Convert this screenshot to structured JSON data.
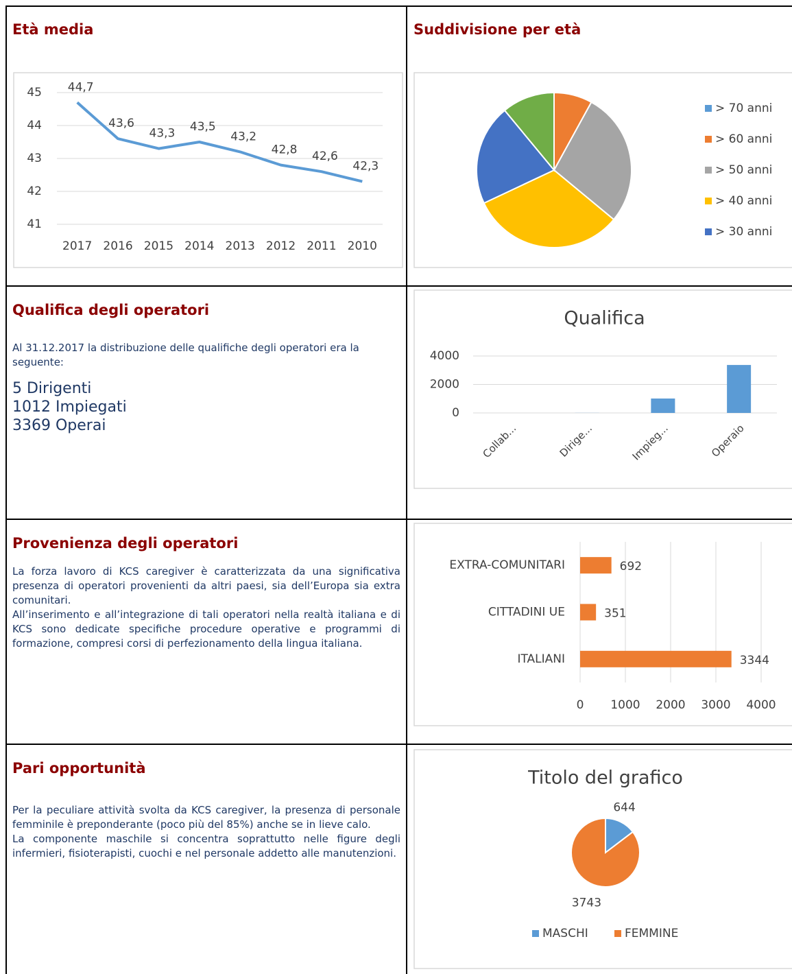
{
  "sections": [
    {
      "title": "Età media"
    },
    {
      "title": "Suddivisione per età"
    },
    {
      "title": "Qualifica degli operatori",
      "paragraphs": [
        "Al 31.12.2017 la distribuzione delle qualifiche degli operatori era la seguente:"
      ],
      "items": [
        "5 Dirigenti",
        "1012 Impiegati",
        "3369 Operai"
      ]
    },
    {
      "title": "Provenienza degli operatori",
      "paragraphs": [
        "La forza lavoro di KCS caregiver è caratterizzata da una significativa presenza di operatori provenienti da altri paesi, sia dell’Europa sia extra comunitari.",
        "All’inserimento e all’integrazione di tali operatori nella realtà italiana e di KCS sono dedicate specifiche procedure operative e programmi di formazione, compresi corsi di perfezionamento della lingua italiana."
      ]
    },
    {
      "title": "Pari opportunità",
      "paragraphs": [
        "Per la peculiare attività svolta da KCS caregiver, la presenza di personale femminile è preponderante (poco più del 85%) anche se in lieve calo.",
        "La componente maschile si concentra soprattutto nelle figure degli infermieri, fisioterapisti, cuochi e nel personale addetto alle manutenzioni."
      ]
    }
  ],
  "chart_data": [
    {
      "type": "line",
      "categories": [
        "2017",
        "2016",
        "2015",
        "2014",
        "2013",
        "2012",
        "2011",
        "2010"
      ],
      "values": [
        44.7,
        43.6,
        43.3,
        43.5,
        43.2,
        42.8,
        42.6,
        42.3
      ],
      "value_labels": [
        "44,7",
        "43,6",
        "43,3",
        "43,5",
        "43,2",
        "42,8",
        "42,6",
        "42,3"
      ],
      "color": "#5b9bd5",
      "ylim": [
        41,
        45
      ],
      "yticks": [
        41,
        42,
        43,
        44,
        45
      ],
      "grid": true
    },
    {
      "type": "pie",
      "categories": [
        "> 70 anni",
        "> 60 anni",
        "> 50 anni",
        "> 40 anni",
        "> 30 anni",
        null
      ],
      "values": [
        0,
        8,
        28,
        32,
        21,
        11
      ],
      "colors": [
        "#5b9bd5",
        "#ed7d31",
        "#a5a5a5",
        "#ffc000",
        "#4472c4",
        "#70ad47"
      ],
      "legend": "right"
    },
    {
      "type": "bar",
      "title": "Qualifica",
      "categories": [
        "Collab...",
        "Dirige...",
        "Impieg...",
        "Operaio"
      ],
      "values": [
        0,
        5,
        1012,
        3369
      ],
      "color": "#5b9bd5",
      "ylim": [
        0,
        4000
      ],
      "yticks": [
        0,
        2000,
        4000
      ],
      "grid": true
    },
    {
      "type": "hbar",
      "categories": [
        "EXTRA-COMUNITARI",
        "CITTADINI UE",
        "ITALIANI"
      ],
      "values": [
        692,
        351,
        3344
      ],
      "color": "#ed7d31",
      "xlim": [
        0,
        4000
      ],
      "xticks": [
        0,
        1000,
        2000,
        3000,
        4000
      ],
      "grid": true
    },
    {
      "type": "pie",
      "title": "Titolo del grafico",
      "categories": [
        "MASCHI",
        "FEMMINE"
      ],
      "values": [
        644,
        3743
      ],
      "colors": [
        "#5b9bd5",
        "#ed7d31"
      ],
      "legend": "bottom",
      "data_labels": true
    }
  ]
}
